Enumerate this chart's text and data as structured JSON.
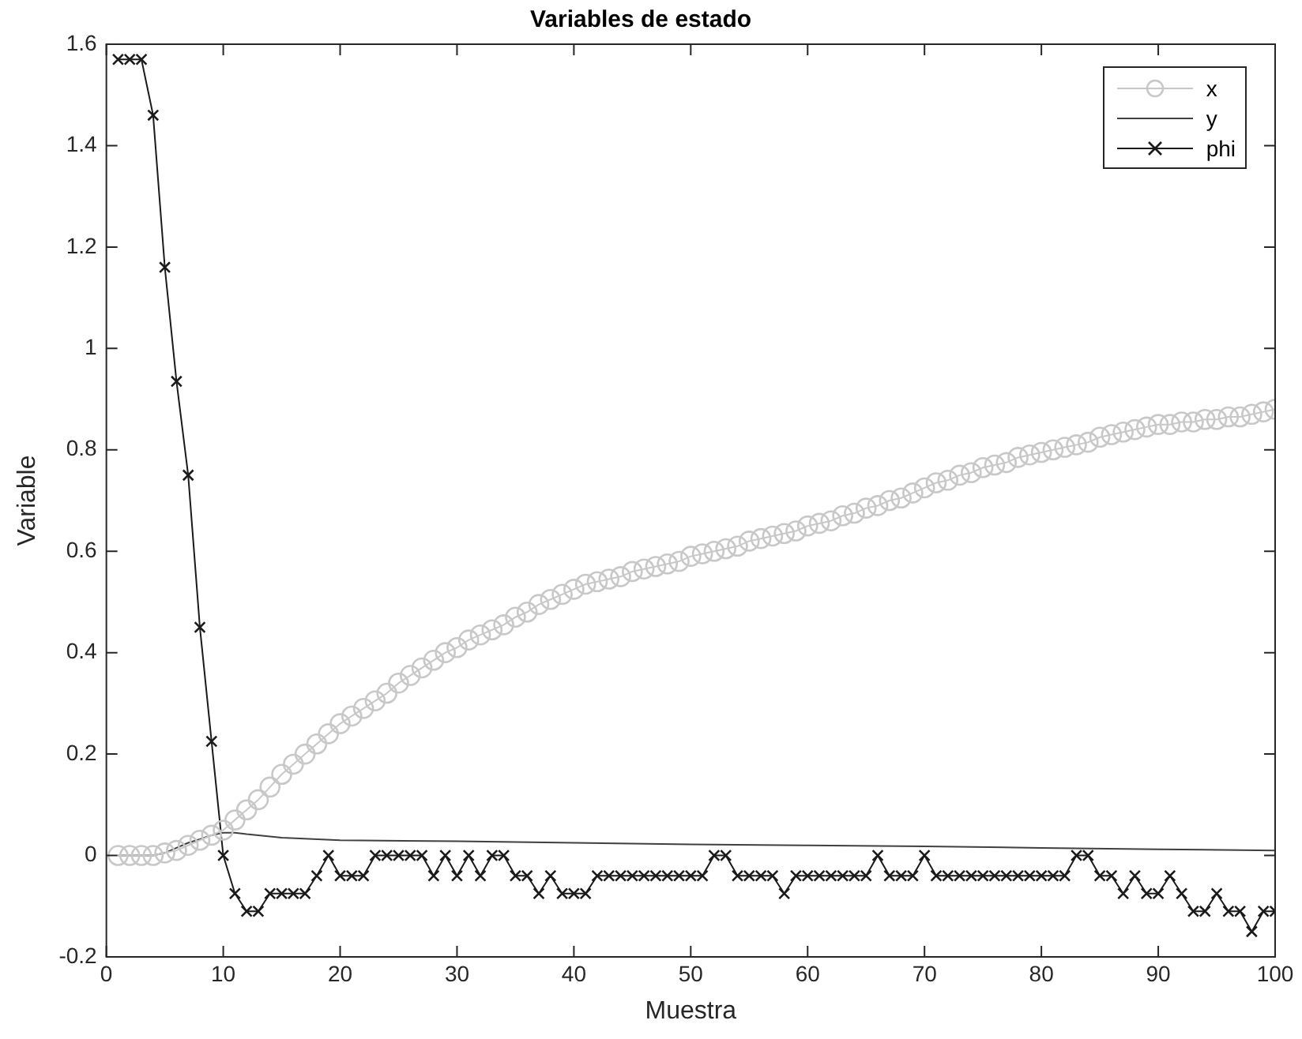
{
  "chart_data": {
    "type": "line",
    "title": "Variables de estado",
    "xlabel": "Muestra",
    "ylabel": "Variable",
    "x": [
      1,
      2,
      3,
      4,
      5,
      6,
      7,
      8,
      9,
      10,
      11,
      12,
      13,
      14,
      15,
      16,
      17,
      18,
      19,
      20,
      21,
      22,
      23,
      24,
      25,
      26,
      27,
      28,
      29,
      30,
      31,
      32,
      33,
      34,
      35,
      36,
      37,
      38,
      39,
      40,
      41,
      42,
      43,
      44,
      45,
      46,
      47,
      48,
      49,
      50,
      51,
      52,
      53,
      54,
      55,
      56,
      57,
      58,
      59,
      60,
      61,
      62,
      63,
      64,
      65,
      66,
      67,
      68,
      69,
      70,
      71,
      72,
      73,
      74,
      75,
      76,
      77,
      78,
      79,
      80,
      81,
      82,
      83,
      84,
      85,
      86,
      87,
      88,
      89,
      90,
      91,
      92,
      93,
      94,
      95,
      96,
      97,
      98,
      99,
      100
    ],
    "series": [
      {
        "name": "x",
        "color": "#c8c8c8",
        "marker": "circle",
        "values": [
          0,
          0,
          0,
          0,
          0.005,
          0.01,
          0.02,
          0.03,
          0.04,
          0.05,
          0.07,
          0.09,
          0.11,
          0.135,
          0.16,
          0.18,
          0.2,
          0.22,
          0.24,
          0.26,
          0.275,
          0.29,
          0.305,
          0.32,
          0.34,
          0.355,
          0.37,
          0.385,
          0.4,
          0.41,
          0.425,
          0.435,
          0.445,
          0.455,
          0.47,
          0.48,
          0.495,
          0.505,
          0.515,
          0.525,
          0.535,
          0.54,
          0.545,
          0.55,
          0.56,
          0.565,
          0.57,
          0.575,
          0.58,
          0.59,
          0.595,
          0.6,
          0.605,
          0.61,
          0.62,
          0.625,
          0.63,
          0.635,
          0.64,
          0.65,
          0.655,
          0.66,
          0.67,
          0.675,
          0.685,
          0.69,
          0.7,
          0.705,
          0.715,
          0.725,
          0.735,
          0.74,
          0.75,
          0.755,
          0.765,
          0.77,
          0.775,
          0.785,
          0.79,
          0.795,
          0.8,
          0.805,
          0.81,
          0.815,
          0.825,
          0.83,
          0.835,
          0.84,
          0.845,
          0.85,
          0.85,
          0.855,
          0.855,
          0.86,
          0.86,
          0.865,
          0.865,
          0.87,
          0.875,
          0.88
        ]
      },
      {
        "name": "y",
        "color": "#404040",
        "marker": "none",
        "x": [
          1,
          4,
          5,
          6,
          7,
          8,
          9,
          10,
          11,
          12,
          15,
          20,
          30,
          40,
          50,
          60,
          70,
          80,
          90,
          100
        ],
        "values": [
          0,
          0,
          0.005,
          0.015,
          0.025,
          0.032,
          0.04,
          0.045,
          0.045,
          0.042,
          0.035,
          0.03,
          0.028,
          0.025,
          0.022,
          0.02,
          0.018,
          0.015,
          0.012,
          0.01
        ]
      },
      {
        "name": "phi",
        "color": "#1a1a1a",
        "marker": "cross",
        "values": [
          1.57,
          1.57,
          1.57,
          1.46,
          1.16,
          0.935,
          0.75,
          0.45,
          0.225,
          0,
          -0.075,
          -0.11,
          -0.11,
          -0.075,
          -0.075,
          -0.075,
          -0.075,
          -0.04,
          0,
          -0.04,
          -0.04,
          -0.04,
          0,
          0,
          0,
          0,
          0,
          -0.04,
          0,
          -0.04,
          0,
          -0.04,
          0,
          0,
          -0.04,
          -0.04,
          -0.075,
          -0.04,
          -0.075,
          -0.075,
          -0.075,
          -0.04,
          -0.04,
          -0.04,
          -0.04,
          -0.04,
          -0.04,
          -0.04,
          -0.04,
          -0.04,
          -0.04,
          0,
          0,
          -0.04,
          -0.04,
          -0.04,
          -0.04,
          -0.075,
          -0.04,
          -0.04,
          -0.04,
          -0.04,
          -0.04,
          -0.04,
          -0.04,
          0,
          -0.04,
          -0.04,
          -0.04,
          0,
          -0.04,
          -0.04,
          -0.04,
          -0.04,
          -0.04,
          -0.04,
          -0.04,
          -0.04,
          -0.04,
          -0.04,
          -0.04,
          -0.04,
          0,
          0,
          -0.04,
          -0.04,
          -0.075,
          -0.04,
          -0.075,
          -0.075,
          -0.04,
          -0.075,
          -0.11,
          -0.11,
          -0.075,
          -0.11,
          -0.11,
          -0.15,
          -0.11,
          -0.11
        ]
      }
    ],
    "xlim": [
      0,
      100
    ],
    "xticks": [
      0,
      10,
      20,
      30,
      40,
      50,
      60,
      70,
      80,
      90,
      100
    ],
    "ylim": [
      -0.2,
      1.6
    ],
    "yticks": [
      -0.2,
      0,
      0.2,
      0.4,
      0.6,
      0.8,
      1,
      1.2,
      1.4,
      1.6
    ],
    "grid": false,
    "legend": "top right",
    "line_style": "solid"
  }
}
